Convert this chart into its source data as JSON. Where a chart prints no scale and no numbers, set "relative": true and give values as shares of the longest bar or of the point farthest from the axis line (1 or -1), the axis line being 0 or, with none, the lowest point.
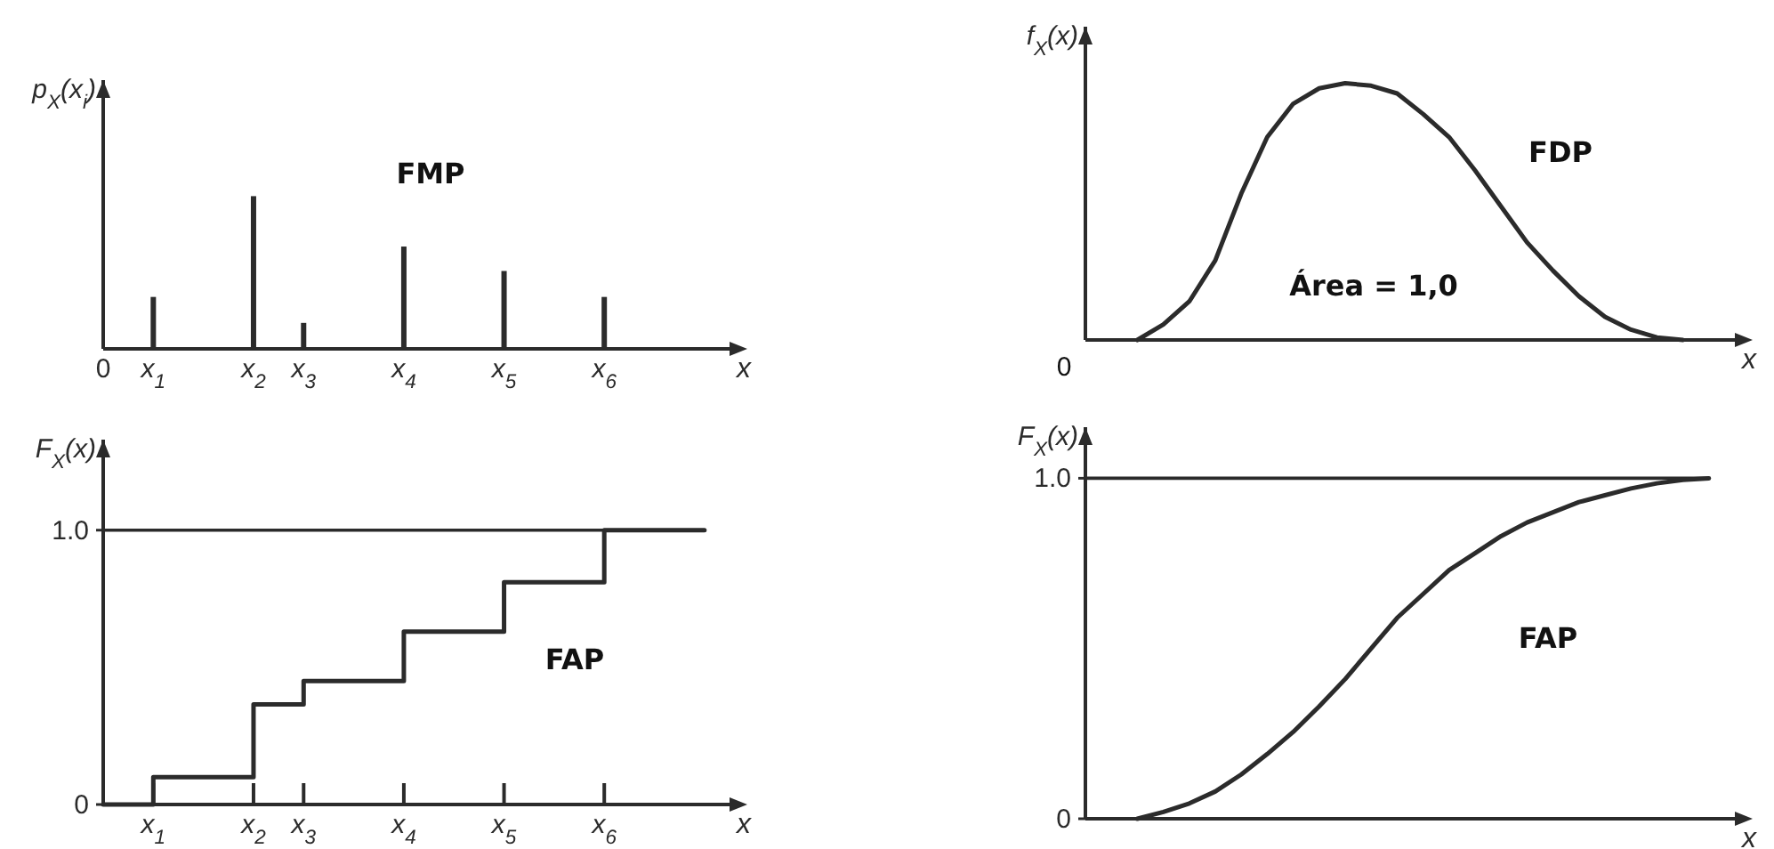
{
  "chart_data": [
    {
      "type": "bar",
      "relative": true,
      "ylabel": "p$_{X}$(x$_{i}$)",
      "xlabel": "x",
      "color": "#2b2b2b",
      "categories": [
        "0",
        "x$_{1}$",
        null,
        "x$_{2}$",
        "x$_{3}$",
        null,
        "x$_{4}$",
        null,
        "x$_{5}$",
        null,
        "x$_{6}$",
        null,
        null
      ],
      "values": [
        null,
        0.34,
        null,
        1,
        0.17,
        null,
        0.67,
        null,
        0.51,
        null,
        0.34,
        null,
        null
      ],
      "annotations": [
        "FMP"
      ]
    },
    {
      "type": "step",
      "ylabel": "F$_{X}$(x)",
      "xlabel": "x",
      "color": "#2b2b2b",
      "categories": [
        null,
        "x$_{1}$",
        null,
        "x$_{2}$",
        "x$_{3}$",
        null,
        "x$_{4}$",
        null,
        "x$_{5}$",
        null,
        "x$_{6}$",
        null,
        null
      ],
      "values": [
        0,
        0.1,
        0.1,
        0.365,
        0.45,
        0.45,
        0.63,
        0.63,
        0.81,
        0.81,
        1.0,
        1.0,
        1.0
      ],
      "ylim": [
        0,
        1.33
      ],
      "yticks": [
        0,
        {
          "value": 1,
          "label": "1.0"
        }
      ],
      "ref_lines": [
        {
          "axis": "y",
          "value": 1,
          "color": "#2b2b2b"
        }
      ],
      "annotations": [
        "FAP"
      ]
    },
    {
      "type": "line",
      "relative": true,
      "ylabel": "f$_{X}$(x)",
      "xlabel": "x",
      "color": "#2b2b2b",
      "categories": [
        null,
        null,
        null,
        null,
        null,
        null,
        null,
        null,
        null,
        null,
        null,
        null,
        null,
        null,
        null,
        null,
        null,
        null,
        null,
        null,
        null,
        null,
        null,
        null,
        null
      ],
      "values": [
        null,
        null,
        0,
        0.06,
        0.15,
        0.31,
        0.57,
        0.79,
        0.92,
        0.98,
        1.0,
        0.99,
        0.96,
        0.88,
        0.79,
        0.66,
        0.52,
        0.38,
        0.27,
        0.17,
        0.09,
        0.04,
        0.01,
        0,
        null
      ],
      "annotations": [
        "FDP",
        "Área = 1,0",
        "0"
      ]
    },
    {
      "type": "line",
      "ylabel": "F$_{X}$(x)",
      "xlabel": "x",
      "color": "#2b2b2b",
      "categories": [
        null,
        null,
        null,
        null,
        null,
        null,
        null,
        null,
        null,
        null,
        null,
        null,
        null,
        null,
        null,
        null,
        null,
        null,
        null,
        null,
        null,
        null,
        null,
        null,
        null
      ],
      "values": [
        null,
        null,
        0,
        0.02,
        0.045,
        0.08,
        0.13,
        0.19,
        0.255,
        0.33,
        0.41,
        0.5,
        0.59,
        0.66,
        0.73,
        0.78,
        0.83,
        0.87,
        0.9,
        0.93,
        0.95,
        0.97,
        0.985,
        0.995,
        1.0
      ],
      "ylim": [
        0,
        1.15
      ],
      "yticks": [
        0,
        {
          "value": 1,
          "label": "1.0"
        }
      ],
      "ref_lines": [
        {
          "axis": "y",
          "value": 1,
          "color": "#2b2b2b"
        }
      ],
      "annotations": [
        "FAP"
      ]
    }
  ]
}
